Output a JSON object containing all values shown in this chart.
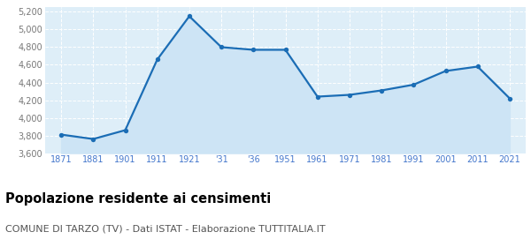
{
  "years_x": [
    0,
    1,
    2,
    3,
    4,
    5,
    6,
    7,
    8,
    9,
    10,
    11,
    12,
    13,
    14
  ],
  "x_labels": [
    "1871",
    "1881",
    "1901",
    "1911",
    "1921",
    "'31",
    "'36",
    "1951",
    "1961",
    "1971",
    "1981",
    "1991",
    "2001",
    "2011",
    "2021"
  ],
  "values": [
    3810,
    3760,
    3860,
    4660,
    5150,
    4800,
    4770,
    4770,
    4240,
    4260,
    4310,
    4375,
    4530,
    4580,
    4220
  ],
  "ylim": [
    3600,
    5250
  ],
  "yticks": [
    3600,
    3800,
    4000,
    4200,
    4400,
    4600,
    4800,
    5000,
    5200
  ],
  "ytick_labels": [
    "3,600",
    "3,800",
    "4,000",
    "4,200",
    "4,400",
    "4,600",
    "4,800",
    "5,000",
    "5,200"
  ],
  "line_color": "#1b6db5",
  "fill_color": "#cde4f5",
  "marker_color": "#1b6db5",
  "bg_color": "#deeef8",
  "grid_color": "white",
  "tick_color": "#4477cc",
  "ytick_color": "#777777",
  "title": "Popolazione residente ai censimenti",
  "subtitle": "COMUNE DI TARZO (TV) - Dati ISTAT - Elaborazione TUTTITALIA.IT",
  "title_fontsize": 10.5,
  "subtitle_fontsize": 8.0
}
